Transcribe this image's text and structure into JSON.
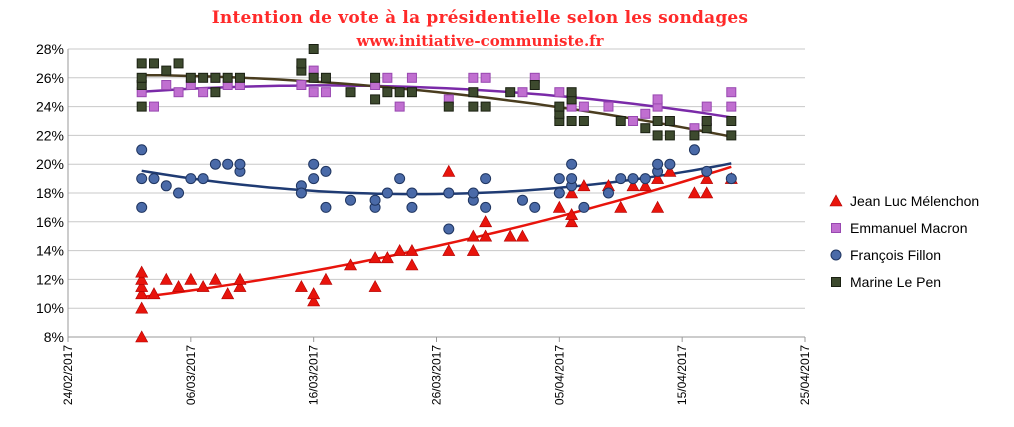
{
  "title": "Intention de vote à la présidentielle selon les sondages",
  "subtitle": "www.initiative-communiste.fr",
  "chart_data": {
    "type": "scatter",
    "title": "Intention de vote à la présidentielle selon les sondages",
    "subtitle": "www.initiative-communiste.fr",
    "xlabel": "",
    "ylabel": "",
    "y_unit": "%",
    "ylim": [
      8,
      28
    ],
    "yticks": [
      "8%",
      "10%",
      "12%",
      "14%",
      "16%",
      "18%",
      "20%",
      "22%",
      "24%",
      "26%",
      "28%"
    ],
    "xlim": [
      "2017-02-24",
      "2017-04-25"
    ],
    "xticks": [
      "24/02/2017",
      "06/03/2017",
      "16/03/2017",
      "26/03/2017",
      "05/04/2017",
      "15/04/2017",
      "25/04/2017"
    ],
    "grid": "horizontal",
    "legend_position": "right",
    "trendlines": "polynomial",
    "series": [
      {
        "name": "Jean Luc Mélenchon",
        "marker": "triangle",
        "color": "#e8140c",
        "trend_color": "#e8140c",
        "points": [
          [
            "2017-03-02",
            8
          ],
          [
            "2017-03-02",
            10
          ],
          [
            "2017-03-02",
            11
          ],
          [
            "2017-03-02",
            11.5
          ],
          [
            "2017-03-02",
            12
          ],
          [
            "2017-03-02",
            12.5
          ],
          [
            "2017-03-03",
            11
          ],
          [
            "2017-03-04",
            12
          ],
          [
            "2017-03-05",
            11.5
          ],
          [
            "2017-03-06",
            12
          ],
          [
            "2017-03-07",
            11.5
          ],
          [
            "2017-03-08",
            12
          ],
          [
            "2017-03-09",
            11
          ],
          [
            "2017-03-10",
            11.5
          ],
          [
            "2017-03-10",
            12
          ],
          [
            "2017-03-15",
            11.5
          ],
          [
            "2017-03-16",
            10.5
          ],
          [
            "2017-03-16",
            11
          ],
          [
            "2017-03-17",
            12
          ],
          [
            "2017-03-19",
            13
          ],
          [
            "2017-03-21",
            11.5
          ],
          [
            "2017-03-21",
            13.5
          ],
          [
            "2017-03-22",
            13.5
          ],
          [
            "2017-03-23",
            14
          ],
          [
            "2017-03-24",
            13
          ],
          [
            "2017-03-24",
            14
          ],
          [
            "2017-03-27",
            14
          ],
          [
            "2017-03-27",
            19.5
          ],
          [
            "2017-03-29",
            14
          ],
          [
            "2017-03-29",
            15
          ],
          [
            "2017-03-30",
            15
          ],
          [
            "2017-03-30",
            16
          ],
          [
            "2017-04-01",
            15
          ],
          [
            "2017-04-02",
            15
          ],
          [
            "2017-04-05",
            17
          ],
          [
            "2017-04-06",
            16
          ],
          [
            "2017-04-06",
            16.5
          ],
          [
            "2017-04-06",
            18
          ],
          [
            "2017-04-07",
            18.5
          ],
          [
            "2017-04-09",
            18.5
          ],
          [
            "2017-04-10",
            17
          ],
          [
            "2017-04-11",
            18.5
          ],
          [
            "2017-04-12",
            18.5
          ],
          [
            "2017-04-13",
            17
          ],
          [
            "2017-04-13",
            19
          ],
          [
            "2017-04-14",
            19.5
          ],
          [
            "2017-04-16",
            18
          ],
          [
            "2017-04-17",
            18
          ],
          [
            "2017-04-17",
            19
          ],
          [
            "2017-04-19",
            19
          ]
        ]
      },
      {
        "name": "Emmanuel Macron",
        "marker": "square",
        "color": "#c06fd0",
        "trend_color": "#7a2aa8",
        "points": [
          [
            "2017-03-02",
            25
          ],
          [
            "2017-03-03",
            24
          ],
          [
            "2017-03-04",
            25.5
          ],
          [
            "2017-03-05",
            25
          ],
          [
            "2017-03-06",
            25.5
          ],
          [
            "2017-03-07",
            25
          ],
          [
            "2017-03-08",
            26
          ],
          [
            "2017-03-09",
            25.5
          ],
          [
            "2017-03-10",
            25.5
          ],
          [
            "2017-03-15",
            25.5
          ],
          [
            "2017-03-16",
            26.5
          ],
          [
            "2017-03-16",
            25
          ],
          [
            "2017-03-17",
            25
          ],
          [
            "2017-03-21",
            25.5
          ],
          [
            "2017-03-22",
            26
          ],
          [
            "2017-03-23",
            24
          ],
          [
            "2017-03-24",
            26
          ],
          [
            "2017-03-27",
            24.5
          ],
          [
            "2017-03-29",
            26
          ],
          [
            "2017-03-30",
            26
          ],
          [
            "2017-04-02",
            25
          ],
          [
            "2017-04-03",
            26
          ],
          [
            "2017-04-05",
            25
          ],
          [
            "2017-04-06",
            24
          ],
          [
            "2017-04-07",
            24
          ],
          [
            "2017-04-09",
            24
          ],
          [
            "2017-04-11",
            23
          ],
          [
            "2017-04-12",
            23.5
          ],
          [
            "2017-04-13",
            24
          ],
          [
            "2017-04-13",
            24.5
          ],
          [
            "2017-04-14",
            23
          ],
          [
            "2017-04-16",
            22.5
          ],
          [
            "2017-04-17",
            23
          ],
          [
            "2017-04-17",
            24
          ],
          [
            "2017-04-19",
            24
          ],
          [
            "2017-04-19",
            25
          ]
        ]
      },
      {
        "name": "François Fillon",
        "marker": "circle",
        "color": "#4a6aa8",
        "trend_color": "#1f3b73",
        "points": [
          [
            "2017-03-02",
            17
          ],
          [
            "2017-03-02",
            19
          ],
          [
            "2017-03-02",
            21
          ],
          [
            "2017-03-03",
            19
          ],
          [
            "2017-03-04",
            18.5
          ],
          [
            "2017-03-05",
            18
          ],
          [
            "2017-03-06",
            19
          ],
          [
            "2017-03-07",
            19
          ],
          [
            "2017-03-08",
            20
          ],
          [
            "2017-03-09",
            20
          ],
          [
            "2017-03-10",
            19.5
          ],
          [
            "2017-03-10",
            20
          ],
          [
            "2017-03-15",
            18.5
          ],
          [
            "2017-03-15",
            18
          ],
          [
            "2017-03-16",
            19
          ],
          [
            "2017-03-16",
            20
          ],
          [
            "2017-03-17",
            19.5
          ],
          [
            "2017-03-17",
            17
          ],
          [
            "2017-03-19",
            17.5
          ],
          [
            "2017-03-21",
            17
          ],
          [
            "2017-03-21",
            17.5
          ],
          [
            "2017-03-22",
            18
          ],
          [
            "2017-03-23",
            19
          ],
          [
            "2017-03-24",
            17
          ],
          [
            "2017-03-24",
            18
          ],
          [
            "2017-03-27",
            15.5
          ],
          [
            "2017-03-27",
            18
          ],
          [
            "2017-03-29",
            17.5
          ],
          [
            "2017-03-29",
            18
          ],
          [
            "2017-03-30",
            17
          ],
          [
            "2017-03-30",
            19
          ],
          [
            "2017-04-02",
            17.5
          ],
          [
            "2017-04-03",
            17
          ],
          [
            "2017-04-05",
            18
          ],
          [
            "2017-04-05",
            19
          ],
          [
            "2017-04-06",
            18.5
          ],
          [
            "2017-04-06",
            19
          ],
          [
            "2017-04-06",
            20
          ],
          [
            "2017-04-07",
            17
          ],
          [
            "2017-04-09",
            18
          ],
          [
            "2017-04-10",
            19
          ],
          [
            "2017-04-11",
            19
          ],
          [
            "2017-04-12",
            19
          ],
          [
            "2017-04-13",
            19.5
          ],
          [
            "2017-04-13",
            20
          ],
          [
            "2017-04-14",
            20
          ],
          [
            "2017-04-16",
            21
          ],
          [
            "2017-04-17",
            19.5
          ],
          [
            "2017-04-19",
            19
          ]
        ]
      },
      {
        "name": "Marine Le Pen",
        "marker": "square",
        "color": "#3d4a2e",
        "trend_color": "#4a3d1f",
        "points": [
          [
            "2017-03-02",
            24
          ],
          [
            "2017-03-02",
            25.5
          ],
          [
            "2017-03-02",
            26
          ],
          [
            "2017-03-02",
            27
          ],
          [
            "2017-03-03",
            27
          ],
          [
            "2017-03-04",
            26.5
          ],
          [
            "2017-03-05",
            27
          ],
          [
            "2017-03-06",
            26
          ],
          [
            "2017-03-07",
            26
          ],
          [
            "2017-03-08",
            25
          ],
          [
            "2017-03-08",
            26
          ],
          [
            "2017-03-09",
            26
          ],
          [
            "2017-03-10",
            26
          ],
          [
            "2017-03-15",
            26.5
          ],
          [
            "2017-03-15",
            27
          ],
          [
            "2017-03-16",
            28
          ],
          [
            "2017-03-16",
            26
          ],
          [
            "2017-03-17",
            26
          ],
          [
            "2017-03-19",
            25
          ],
          [
            "2017-03-21",
            24.5
          ],
          [
            "2017-03-21",
            26
          ],
          [
            "2017-03-22",
            25
          ],
          [
            "2017-03-23",
            25
          ],
          [
            "2017-03-24",
            25
          ],
          [
            "2017-03-27",
            24
          ],
          [
            "2017-03-29",
            24
          ],
          [
            "2017-03-29",
            25
          ],
          [
            "2017-03-30",
            24
          ],
          [
            "2017-04-01",
            25
          ],
          [
            "2017-04-03",
            25.5
          ],
          [
            "2017-04-05",
            23
          ],
          [
            "2017-04-05",
            23.5
          ],
          [
            "2017-04-05",
            24
          ],
          [
            "2017-04-06",
            23
          ],
          [
            "2017-04-06",
            24.5
          ],
          [
            "2017-04-06",
            25
          ],
          [
            "2017-04-07",
            23
          ],
          [
            "2017-04-10",
            23
          ],
          [
            "2017-04-12",
            22.5
          ],
          [
            "2017-04-13",
            22
          ],
          [
            "2017-04-13",
            23
          ],
          [
            "2017-04-14",
            22
          ],
          [
            "2017-04-14",
            23
          ],
          [
            "2017-04-16",
            22
          ],
          [
            "2017-04-17",
            22.5
          ],
          [
            "2017-04-17",
            23
          ],
          [
            "2017-04-19",
            22
          ],
          [
            "2017-04-19",
            23
          ]
        ]
      }
    ]
  }
}
